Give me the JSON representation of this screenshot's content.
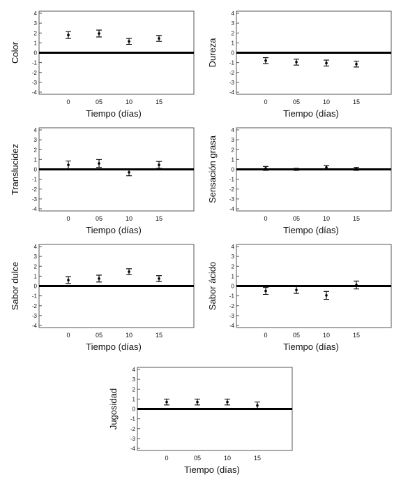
{
  "chart_data": [
    {
      "type": "scatter",
      "xlabel": "Tiempo (días)",
      "ylabel": "Color",
      "ylim": [
        -4,
        4
      ],
      "yticks": [
        -4,
        -3,
        -2,
        -1,
        0,
        1,
        2,
        3,
        4
      ],
      "categories": [
        "0",
        "05",
        "10",
        "15"
      ],
      "points": [
        {
          "x": "0",
          "y": 1.8,
          "err": 0.35
        },
        {
          "x": "05",
          "y": 1.95,
          "err": 0.35
        },
        {
          "x": "10",
          "y": 1.15,
          "err": 0.3
        },
        {
          "x": "15",
          "y": 1.45,
          "err": 0.3
        }
      ],
      "zero_line": true,
      "grid": false
    },
    {
      "type": "scatter",
      "xlabel": "Tiempo (días)",
      "ylabel": "Dureza",
      "ylim": [
        -4,
        4
      ],
      "yticks": [
        -4,
        -3,
        -2,
        -1,
        0,
        1,
        2,
        3,
        4
      ],
      "categories": [
        "0",
        "05",
        "10",
        "15"
      ],
      "points": [
        {
          "x": "0",
          "y": -0.8,
          "err": 0.3
        },
        {
          "x": "05",
          "y": -0.95,
          "err": 0.3
        },
        {
          "x": "10",
          "y": -1.05,
          "err": 0.3
        },
        {
          "x": "15",
          "y": -1.15,
          "err": 0.3
        }
      ],
      "zero_line": true,
      "grid": false
    },
    {
      "type": "scatter",
      "xlabel": "Tiempo (días)",
      "ylabel": "Translucidez",
      "ylim": [
        -4,
        4
      ],
      "yticks": [
        -4,
        -3,
        -2,
        -1,
        0,
        1,
        2,
        3,
        4
      ],
      "categories": [
        "0",
        "05",
        "10",
        "15"
      ],
      "points": [
        {
          "x": "0",
          "y": 0.45,
          "err": 0.4
        },
        {
          "x": "05",
          "y": 0.6,
          "err": 0.4
        },
        {
          "x": "10",
          "y": -0.3,
          "err": 0.35
        },
        {
          "x": "15",
          "y": 0.45,
          "err": 0.35
        }
      ],
      "zero_line": true,
      "grid": false
    },
    {
      "type": "scatter",
      "xlabel": "Tiempo (días)",
      "ylabel": "Sensación grasa",
      "ylim": [
        -4,
        4
      ],
      "yticks": [
        -4,
        -3,
        -2,
        -1,
        0,
        1,
        2,
        3,
        4
      ],
      "categories": [
        "0",
        "05",
        "10",
        "15"
      ],
      "points": [
        {
          "x": "0",
          "y": 0.1,
          "err": 0.2
        },
        {
          "x": "05",
          "y": 0.0,
          "err": 0.1
        },
        {
          "x": "10",
          "y": 0.2,
          "err": 0.2
        },
        {
          "x": "15",
          "y": 0.05,
          "err": 0.15
        }
      ],
      "zero_line": true,
      "grid": false
    },
    {
      "type": "scatter",
      "xlabel": "Tiempo (días)",
      "ylabel": "Sabor dulce",
      "ylim": [
        -4,
        4
      ],
      "yticks": [
        -4,
        -3,
        -2,
        -1,
        0,
        1,
        2,
        3,
        4
      ],
      "categories": [
        "0",
        "05",
        "10",
        "15"
      ],
      "points": [
        {
          "x": "0",
          "y": 0.6,
          "err": 0.35
        },
        {
          "x": "05",
          "y": 0.75,
          "err": 0.35
        },
        {
          "x": "10",
          "y": 1.45,
          "err": 0.3
        },
        {
          "x": "15",
          "y": 0.75,
          "err": 0.3
        }
      ],
      "zero_line": true,
      "grid": false
    },
    {
      "type": "scatter",
      "xlabel": "Tiempo (días)",
      "ylabel": "Sabor ácido",
      "ylim": [
        -4,
        4
      ],
      "yticks": [
        -4,
        -3,
        -2,
        -1,
        0,
        1,
        2,
        3,
        4
      ],
      "categories": [
        "0",
        "05",
        "10",
        "15"
      ],
      "points": [
        {
          "x": "0",
          "y": -0.5,
          "err": 0.35
        },
        {
          "x": "05",
          "y": -0.4,
          "err": 0.35
        },
        {
          "x": "10",
          "y": -0.95,
          "err": 0.4
        },
        {
          "x": "15",
          "y": 0.1,
          "err": 0.4
        }
      ],
      "zero_line": true,
      "grid": false
    },
    {
      "type": "scatter",
      "xlabel": "Tiempo (días)",
      "ylabel": "Jugosidad",
      "ylim": [
        -4,
        4
      ],
      "yticks": [
        -4,
        -3,
        -2,
        -1,
        0,
        1,
        2,
        3,
        4
      ],
      "categories": [
        "0",
        "05",
        "10",
        "15"
      ],
      "points": [
        {
          "x": "0",
          "y": 0.7,
          "err": 0.3
        },
        {
          "x": "05",
          "y": 0.7,
          "err": 0.3
        },
        {
          "x": "10",
          "y": 0.7,
          "err": 0.3
        },
        {
          "x": "15",
          "y": 0.35,
          "err": 0.35
        }
      ],
      "zero_line": true,
      "grid": false
    }
  ]
}
